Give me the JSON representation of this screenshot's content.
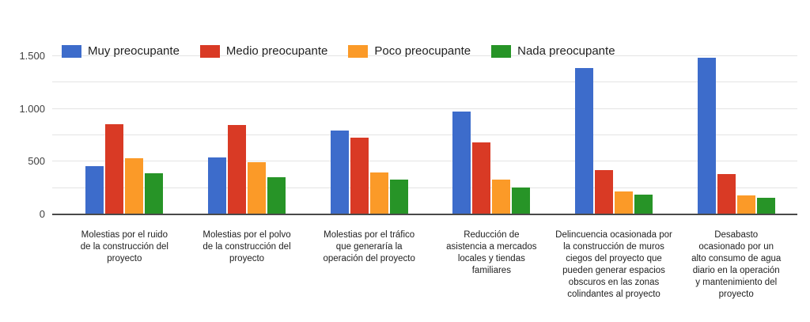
{
  "chart": {
    "yticks": [
      {
        "label": "0",
        "value": 0
      },
      {
        "label": "500",
        "value": 500
      },
      {
        "label": "1.000",
        "value": 1000
      },
      {
        "label": "1.500",
        "value": 1500
      }
    ],
    "baseline_color": "#4a4a4a",
    "gridline_color": "#e4e4e4"
  },
  "chart_data": {
    "type": "bar",
    "title": "",
    "xlabel": "",
    "ylabel": "",
    "ylim": [
      0,
      1500
    ],
    "grid_interval": 250,
    "legend_position": "top",
    "categories": [
      "Molestias por el ruido\nde la construcción del\nproyecto",
      "Molestias por el polvo\nde la construcción del\nproyecto",
      "Molestias por el tráfico\nque generaría la\noperación del proyecto",
      "Reducción de\nasistencia a mercados\nlocales y tiendas\nfamiliares",
      "Delincuencia ocasionada por\nla construcción de muros\nciegos del proyecto que\npueden generar espacios\nobscuros en las zonas\ncolindantes al proyecto",
      "Desabasto\nocasionado por un\nalto consumo de agua\ndiario en la operación\ny mantenimiento del\nproyecto"
    ],
    "series": [
      {
        "name": "Muy preocupante",
        "color": "#3d6ccb",
        "values": [
          460,
          540,
          795,
          975,
          1390,
          1485
        ]
      },
      {
        "name": "Medio preocupante",
        "color": "#d93a25",
        "values": [
          855,
          850,
          725,
          680,
          420,
          380
        ]
      },
      {
        "name": "Poco preocupante",
        "color": "#fb9a28",
        "values": [
          530,
          495,
          400,
          330,
          215,
          180
        ]
      },
      {
        "name": "Nada preocupante",
        "color": "#279427",
        "values": [
          390,
          350,
          330,
          255,
          185,
          155
        ]
      }
    ]
  }
}
